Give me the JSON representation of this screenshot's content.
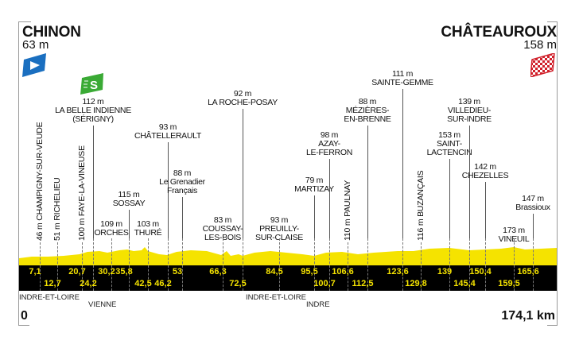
{
  "start": {
    "city": "CHINON",
    "altitude": "63 m",
    "icon": "start-flag-icon",
    "color": "#1a6fc0"
  },
  "finish": {
    "city": "CHÂTEAUROUX",
    "altitude": "158 m",
    "icon": "checkered-finish-flag-icon",
    "color": "#d0202a"
  },
  "sprint": {
    "icon": "intermediate-sprint-icon",
    "symbol": "S",
    "color": "#3aaa35"
  },
  "profile_color": "#f5e300",
  "waypoints": [
    {
      "km": "7,1",
      "label": "46 m CHAMPIGNY-SUR-VEUDE"
    },
    {
      "km": "12,7",
      "label": "51 m RICHELIEU"
    },
    {
      "km": "20,7",
      "label": "100 m FAYE-LA-VINEUSE"
    },
    {
      "km": "24,2",
      "label": "112 m\nLA BELLE INDIENNE\n(SÉRIGNY)"
    },
    {
      "km": "30,2",
      "label": "109 m\nORCHES"
    },
    {
      "km": "35,8",
      "label": "115 m\nSOSSAY"
    },
    {
      "km": "42,5",
      "label": "103 m\nTHURÉ"
    },
    {
      "km": "46,2",
      "label": "93 m\nCHÂTELLERAULT"
    },
    {
      "km": "53",
      "label": "88 m\nLe Grenadier\nFrançais"
    },
    {
      "km": "66,3",
      "label": "83 m\nCOUSSAY-\nLES-BOIS"
    },
    {
      "km": "72,5",
      "label": "92 m\nLA ROCHE-POSAY"
    },
    {
      "km": "84,5",
      "label": "93 m\nPREUILLY-\nSUR-CLAISE"
    },
    {
      "km": "95,5",
      "label": "79 m\nMARTIZAY"
    },
    {
      "km": "100,7",
      "label": "98 m\nAZAY-\nLE-FERRON"
    },
    {
      "km": "106,6",
      "label": "110 m PAULNAY"
    },
    {
      "km": "112,5",
      "label": "88 m\nMÉZIÈRES-\nEN-BRENNE"
    },
    {
      "km": "123,6",
      "label": "111 m\nSAINTE-GEMME"
    },
    {
      "km": "129,8",
      "label": "116 m BUZANÇAIS"
    },
    {
      "km": "139",
      "label": "153 m\nSAINT-\nLACTENCIN"
    },
    {
      "km": "145,4",
      "label": "139 m\nVILLEDIEU-\nSUR-INDRE"
    },
    {
      "km": "150,4",
      "label": "142 m\nCHEZELLES"
    },
    {
      "km": "159,5",
      "label": "173 m\nVINEUIL"
    },
    {
      "km": "165,6",
      "label": "147 m\nBrassioux"
    }
  ],
  "departments": [
    "INDRE-ET-LOIRE",
    "VIENNE",
    "INDRE-ET-LOIRE",
    "INDRE"
  ],
  "distance": {
    "start": "0",
    "end": "174,1 km"
  }
}
